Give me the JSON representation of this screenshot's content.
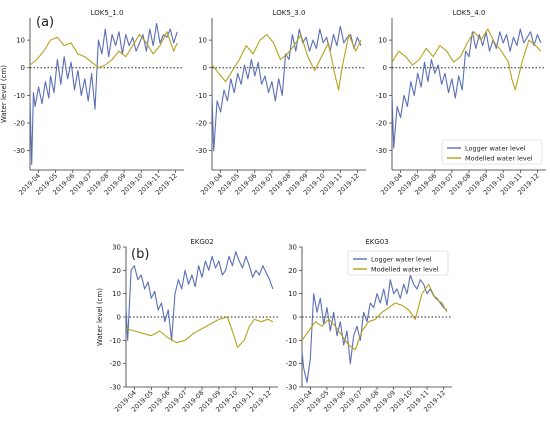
{
  "panel_labels": {
    "a": "(a)",
    "b": "(b)"
  },
  "colors": {
    "logger": "#5a6eb4",
    "modelled": "#b5a21c",
    "zero_line": "#222222",
    "axis": "#333333"
  },
  "shared": {
    "ylabel": "Water level (cm)",
    "legend": [
      "Logger water level",
      "Modelled water level"
    ],
    "x_ticks": [
      "2019-04",
      "2019-05",
      "2019-06",
      "2019-07",
      "2019-08",
      "2019-09",
      "2019-10",
      "2019-11",
      "2019-12"
    ]
  },
  "chart_data": [
    {
      "type": "line",
      "title": "LOK5_1.0",
      "xlabel": "",
      "ylabel": "Water level (cm)",
      "xlim": [
        0,
        9
      ],
      "ylim": [
        -37,
        18
      ],
      "y_ticks": [
        10,
        0,
        -10,
        -20,
        -30
      ],
      "zero_line": 0,
      "legend_shown": false,
      "series": [
        {
          "name": "Logger water level",
          "x": [
            0,
            0.1,
            0.2,
            0.3,
            0.5,
            0.7,
            0.9,
            1.1,
            1.2,
            1.4,
            1.6,
            1.8,
            2.0,
            2.2,
            2.4,
            2.6,
            2.8,
            3.0,
            3.2,
            3.4,
            3.6,
            3.8,
            4.0,
            4.2,
            4.4,
            4.6,
            4.8,
            5.0,
            5.2,
            5.4,
            5.6,
            5.8,
            6.0,
            6.2,
            6.4,
            6.6,
            6.8,
            7.0,
            7.2,
            7.4,
            7.6,
            7.8,
            8.0,
            8.2,
            8.4,
            8.6
          ],
          "values": [
            -12,
            -35,
            -9,
            -14,
            -7,
            -13,
            -5,
            -11,
            -3,
            -9,
            3,
            -6,
            4,
            -4,
            2,
            -8,
            -1,
            -10,
            -4,
            -12,
            -2,
            -15,
            10,
            5,
            14,
            4,
            12,
            8,
            13,
            5,
            12,
            8,
            11,
            6,
            9,
            12,
            6,
            14,
            8,
            16,
            9,
            12,
            11,
            14,
            9,
            13
          ]
        },
        {
          "name": "Modelled water level",
          "x": [
            0,
            0.4,
            0.8,
            1.2,
            1.6,
            2.0,
            2.4,
            2.8,
            3.2,
            3.6,
            4.0,
            4.4,
            4.8,
            5.2,
            5.6,
            6.0,
            6.4,
            6.8,
            7.2,
            7.6,
            8.0,
            8.4,
            8.6
          ],
          "values": [
            1,
            3,
            6,
            10,
            11,
            8,
            9,
            5,
            4,
            2,
            0,
            1,
            3,
            6,
            4,
            8,
            12,
            9,
            5,
            8,
            13,
            6,
            9
          ]
        }
      ]
    },
    {
      "type": "line",
      "title": "LOK5_3.0",
      "xlabel": "",
      "ylabel": "",
      "xlim": [
        0,
        9
      ],
      "ylim": [
        -37,
        18
      ],
      "y_ticks": [
        10,
        0,
        -10,
        -20,
        -30
      ],
      "zero_line": 0,
      "legend_shown": false,
      "series": [
        {
          "name": "Logger water level",
          "x": [
            0,
            0.1,
            0.3,
            0.5,
            0.7,
            0.9,
            1.1,
            1.3,
            1.5,
            1.7,
            1.9,
            2.1,
            2.3,
            2.5,
            2.7,
            2.9,
            3.1,
            3.3,
            3.5,
            3.7,
            3.9,
            4.1,
            4.3,
            4.5,
            4.7,
            4.9,
            5.1,
            5.3,
            5.5,
            5.7,
            5.9,
            6.1,
            6.3,
            6.5,
            6.7,
            6.9,
            7.1,
            7.3,
            7.5,
            7.7,
            7.9,
            8.1,
            8.3,
            8.5,
            8.7
          ],
          "values": [
            -10,
            -30,
            -12,
            -16,
            -8,
            -12,
            -4,
            -9,
            -2,
            -6,
            1,
            -4,
            3,
            -3,
            2,
            -6,
            -3,
            -9,
            -5,
            -12,
            -4,
            -10,
            5,
            3,
            12,
            6,
            14,
            9,
            11,
            6,
            10,
            7,
            14,
            9,
            11,
            6,
            12,
            8,
            15,
            9,
            11,
            12,
            7,
            11,
            8
          ]
        },
        {
          "name": "Modelled water level",
          "x": [
            0,
            0.4,
            0.8,
            1.2,
            1.6,
            2.0,
            2.4,
            2.8,
            3.2,
            3.6,
            4.0,
            4.4,
            4.8,
            5.2,
            5.6,
            6.0,
            6.4,
            6.8,
            7.2,
            7.4,
            7.6,
            8.0,
            8.4,
            8.7
          ],
          "values": [
            1,
            -2,
            -5,
            -1,
            3,
            8,
            5,
            10,
            12,
            9,
            3,
            5,
            8,
            12,
            4,
            -1,
            4,
            9,
            -3,
            -8,
            0,
            12,
            6,
            10
          ]
        }
      ]
    },
    {
      "type": "line",
      "title": "LOK5_4.0",
      "xlabel": "",
      "ylabel": "",
      "xlim": [
        0,
        9
      ],
      "ylim": [
        -37,
        18
      ],
      "y_ticks": [
        10,
        0,
        -10,
        -20,
        -30
      ],
      "zero_line": 0,
      "legend_shown": true,
      "legend_position": "bottom-right",
      "series": [
        {
          "name": "Logger water level",
          "x": [
            0,
            0.1,
            0.3,
            0.5,
            0.7,
            0.9,
            1.1,
            1.3,
            1.5,
            1.7,
            1.9,
            2.1,
            2.3,
            2.5,
            2.7,
            2.9,
            3.1,
            3.3,
            3.5,
            3.7,
            3.9,
            4.1,
            4.3,
            4.5,
            4.7,
            4.9,
            5.1,
            5.3,
            5.5,
            5.7,
            5.9,
            6.1,
            6.3,
            6.5,
            6.7,
            6.9,
            7.1,
            7.3,
            7.5,
            7.7,
            7.9,
            8.1,
            8.3,
            8.5,
            8.7
          ],
          "values": [
            -10,
            -29,
            -14,
            -18,
            -10,
            -14,
            -5,
            -10,
            -2,
            -7,
            2,
            -5,
            3,
            -2,
            1,
            -6,
            -2,
            -9,
            -4,
            -11,
            -3,
            -8,
            6,
            4,
            13,
            7,
            12,
            8,
            13,
            6,
            10,
            7,
            13,
            9,
            12,
            6,
            11,
            8,
            14,
            9,
            11,
            13,
            8,
            12,
            9
          ]
        },
        {
          "name": "Modelled water level",
          "x": [
            0,
            0.4,
            0.8,
            1.2,
            1.6,
            2.0,
            2.4,
            2.8,
            3.2,
            3.6,
            4.0,
            4.4,
            4.8,
            5.2,
            5.6,
            6.0,
            6.4,
            6.8,
            7.0,
            7.2,
            7.6,
            8.0,
            8.4,
            8.7
          ],
          "values": [
            2,
            6,
            4,
            1,
            3,
            7,
            4,
            8,
            6,
            2,
            4,
            9,
            13,
            10,
            14,
            9,
            6,
            2,
            -4,
            -8,
            2,
            10,
            8,
            6
          ]
        }
      ]
    },
    {
      "type": "line",
      "title": "EKG02",
      "xlabel": "",
      "ylabel": "Water level (cm)",
      "xlim": [
        0,
        9
      ],
      "ylim": [
        -30,
        30
      ],
      "y_ticks": [
        30,
        20,
        10,
        0,
        -10,
        -20,
        -30
      ],
      "zero_line": 0,
      "legend_shown": false,
      "series": [
        {
          "name": "Logger water level",
          "x": [
            0,
            0.1,
            0.3,
            0.5,
            0.7,
            0.9,
            1.1,
            1.3,
            1.5,
            1.7,
            1.9,
            2.1,
            2.3,
            2.5,
            2.7,
            2.9,
            3.1,
            3.3,
            3.5,
            3.7,
            3.9,
            4.1,
            4.3,
            4.5,
            4.7,
            4.9,
            5.1,
            5.3,
            5.5,
            5.7,
            5.9,
            6.1,
            6.3,
            6.5,
            6.7,
            6.9,
            7.1,
            7.3,
            7.5,
            7.7,
            7.9,
            8.1,
            8.3,
            8.5,
            8.7
          ],
          "values": [
            4,
            -10,
            20,
            22,
            16,
            18,
            12,
            15,
            8,
            11,
            3,
            6,
            -2,
            3,
            -10,
            10,
            16,
            12,
            20,
            14,
            18,
            13,
            22,
            17,
            24,
            20,
            26,
            21,
            24,
            18,
            20,
            26,
            22,
            28,
            24,
            21,
            26,
            22,
            17,
            20,
            18,
            22,
            19,
            16,
            12
          ]
        },
        {
          "name": "Modelled water level",
          "x": [
            0,
            0.5,
            1.0,
            1.5,
            2.0,
            2.5,
            3.0,
            3.5,
            4.0,
            4.5,
            5.0,
            5.5,
            6.0,
            6.3,
            6.6,
            7.0,
            7.3,
            7.6,
            8.0,
            8.4,
            8.7
          ],
          "values": [
            -5,
            -6,
            -7,
            -8,
            -6,
            -9,
            -11,
            -10,
            -7,
            -5,
            -3,
            -1,
            0,
            -6,
            -13,
            -10,
            -4,
            -1,
            -2,
            -1,
            -2
          ]
        }
      ]
    },
    {
      "type": "line",
      "title": "EKG03",
      "xlabel": "",
      "ylabel": "",
      "xlim": [
        0,
        9
      ],
      "ylim": [
        -30,
        30
      ],
      "y_ticks": [
        30,
        20,
        10,
        0,
        -10,
        -20,
        -30
      ],
      "zero_line": 0,
      "legend_shown": true,
      "legend_position": "top-right",
      "series": [
        {
          "name": "Logger water level",
          "x": [
            0,
            0.1,
            0.3,
            0.5,
            0.7,
            0.9,
            1.1,
            1.3,
            1.5,
            1.7,
            1.9,
            2.1,
            2.3,
            2.5,
            2.7,
            2.9,
            3.1,
            3.3,
            3.5,
            3.7,
            3.9,
            4.1,
            4.3,
            4.5,
            4.7,
            4.9,
            5.1,
            5.3,
            5.5,
            5.7,
            5.9,
            6.1,
            6.3,
            6.5,
            6.7,
            6.9,
            7.1,
            7.3,
            7.5,
            7.7,
            7.9,
            8.1,
            8.3,
            8.5,
            8.7
          ],
          "values": [
            -15,
            -22,
            -28,
            -18,
            10,
            2,
            8,
            -3,
            4,
            -6,
            2,
            -8,
            -2,
            -12,
            -6,
            -20,
            -8,
            -4,
            -10,
            2,
            -2,
            6,
            4,
            10,
            6,
            12,
            5,
            16,
            10,
            12,
            8,
            14,
            10,
            18,
            14,
            12,
            16,
            14,
            10,
            12,
            9,
            8,
            6,
            4,
            3
          ]
        },
        {
          "name": "Modelled water level",
          "x": [
            0,
            0.4,
            0.8,
            1.2,
            1.6,
            2.0,
            2.4,
            2.8,
            3.2,
            3.6,
            4.0,
            4.4,
            4.8,
            5.2,
            5.6,
            6.0,
            6.4,
            6.8,
            7.2,
            7.6,
            8.0,
            8.4,
            8.7
          ],
          "values": [
            -10,
            -6,
            -2,
            -4,
            -1,
            -4,
            -8,
            -12,
            -14,
            -6,
            -2,
            -1,
            2,
            4,
            6,
            5,
            3,
            -1,
            10,
            14,
            8,
            6,
            2
          ]
        }
      ]
    }
  ]
}
